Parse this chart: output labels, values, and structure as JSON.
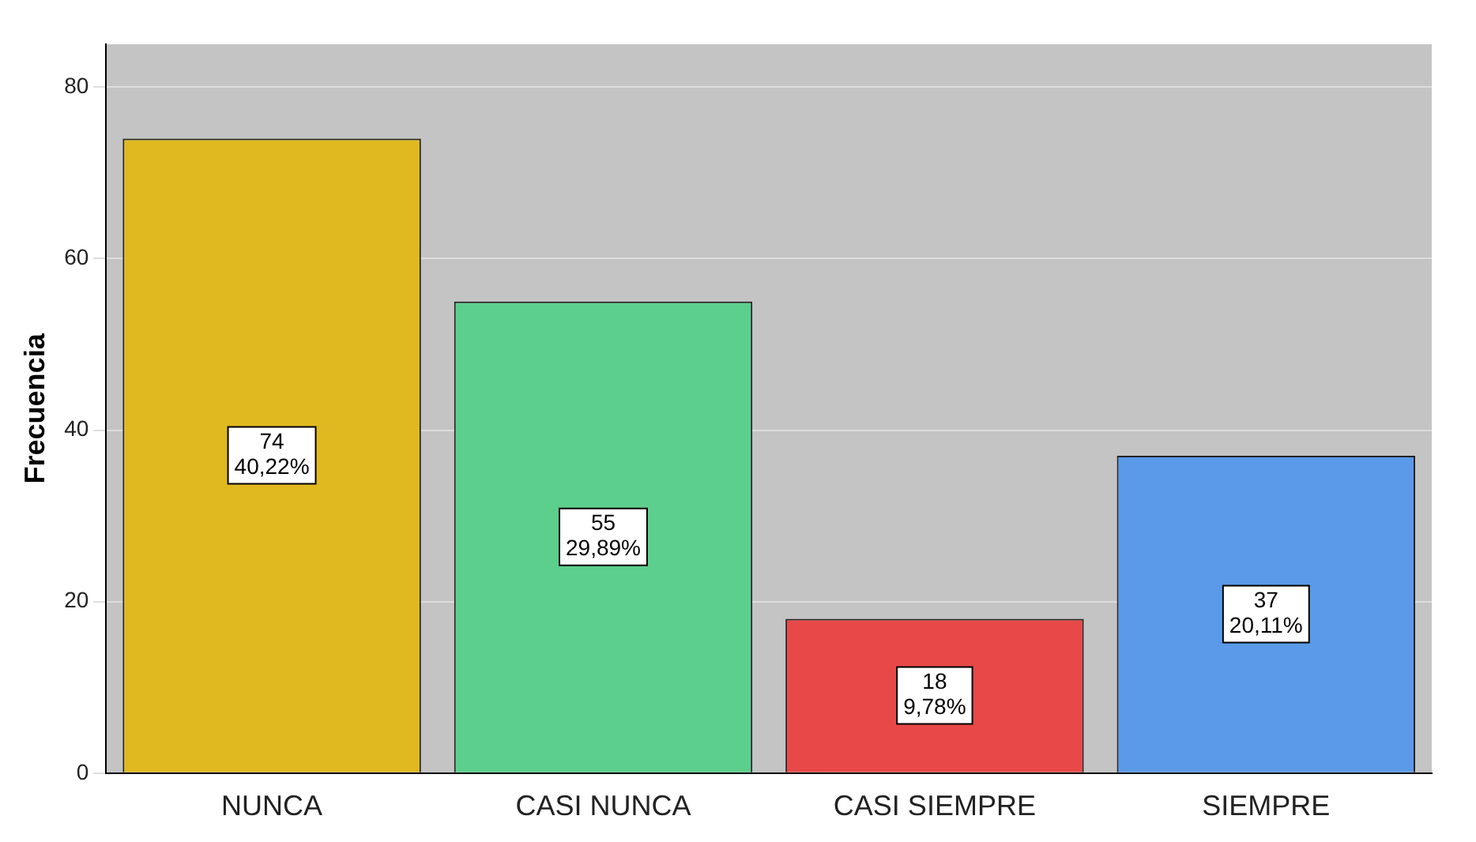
{
  "chart_data": {
    "type": "bar",
    "ylabel": "Frecuencia",
    "categories": [
      "NUNCA",
      "CASI NUNCA",
      "CASI SIEMPRE",
      "SIEMPRE"
    ],
    "values": [
      74,
      55,
      18,
      37
    ],
    "colors": [
      "#e0b820",
      "#5ccf8c",
      "#e84848",
      "#5a9ae8"
    ],
    "value_labels": [
      "74\n40,22%",
      "55\n29,89%",
      "18\n9,78%",
      "37\n20,11%"
    ],
    "ylim": [
      0,
      85
    ],
    "yticks": [
      0,
      20,
      40,
      60,
      80
    ],
    "grid": "y",
    "legend": false
  }
}
